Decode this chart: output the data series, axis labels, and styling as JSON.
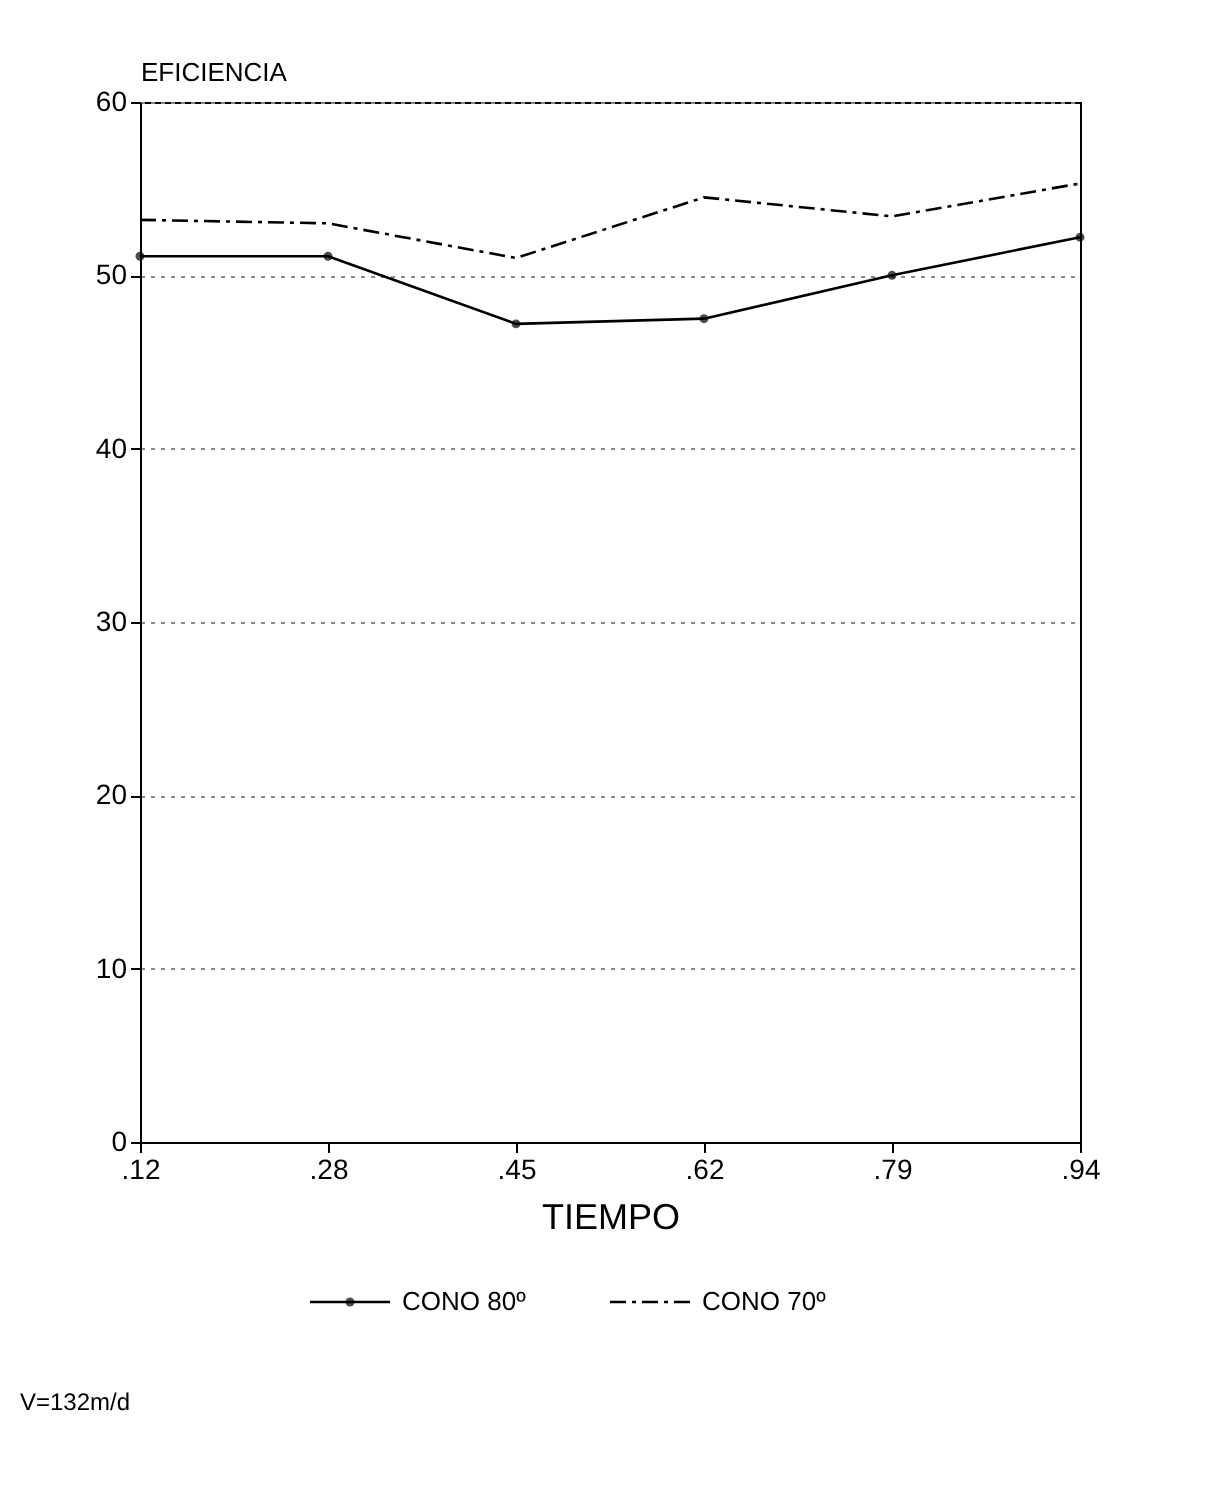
{
  "chart_data": {
    "type": "line",
    "xlabel": "TIEMPO",
    "ylabel": "EFICIENCIA",
    "categories": [
      ".12",
      ".28",
      ".45",
      ".62",
      ".79",
      ".94"
    ],
    "series": [
      {
        "name": "CONO 80º",
        "color": "#000000",
        "values": [
          51.1,
          51.1,
          47.2,
          47.5,
          50.0,
          52.2
        ],
        "marker": "circle",
        "line_style": "solid"
      },
      {
        "name": "CONO 70º",
        "color": "#000000",
        "values": [
          53.2,
          53.0,
          51.0,
          54.5,
          53.4,
          55.3
        ],
        "marker": "none",
        "line_style": "dashed"
      }
    ],
    "ylim": [
      0,
      60
    ],
    "yticks": [
      0,
      10,
      20,
      30,
      40,
      50,
      60
    ],
    "grid": "y",
    "legend": "bottom",
    "annotations": [
      "V=132m/d"
    ]
  }
}
